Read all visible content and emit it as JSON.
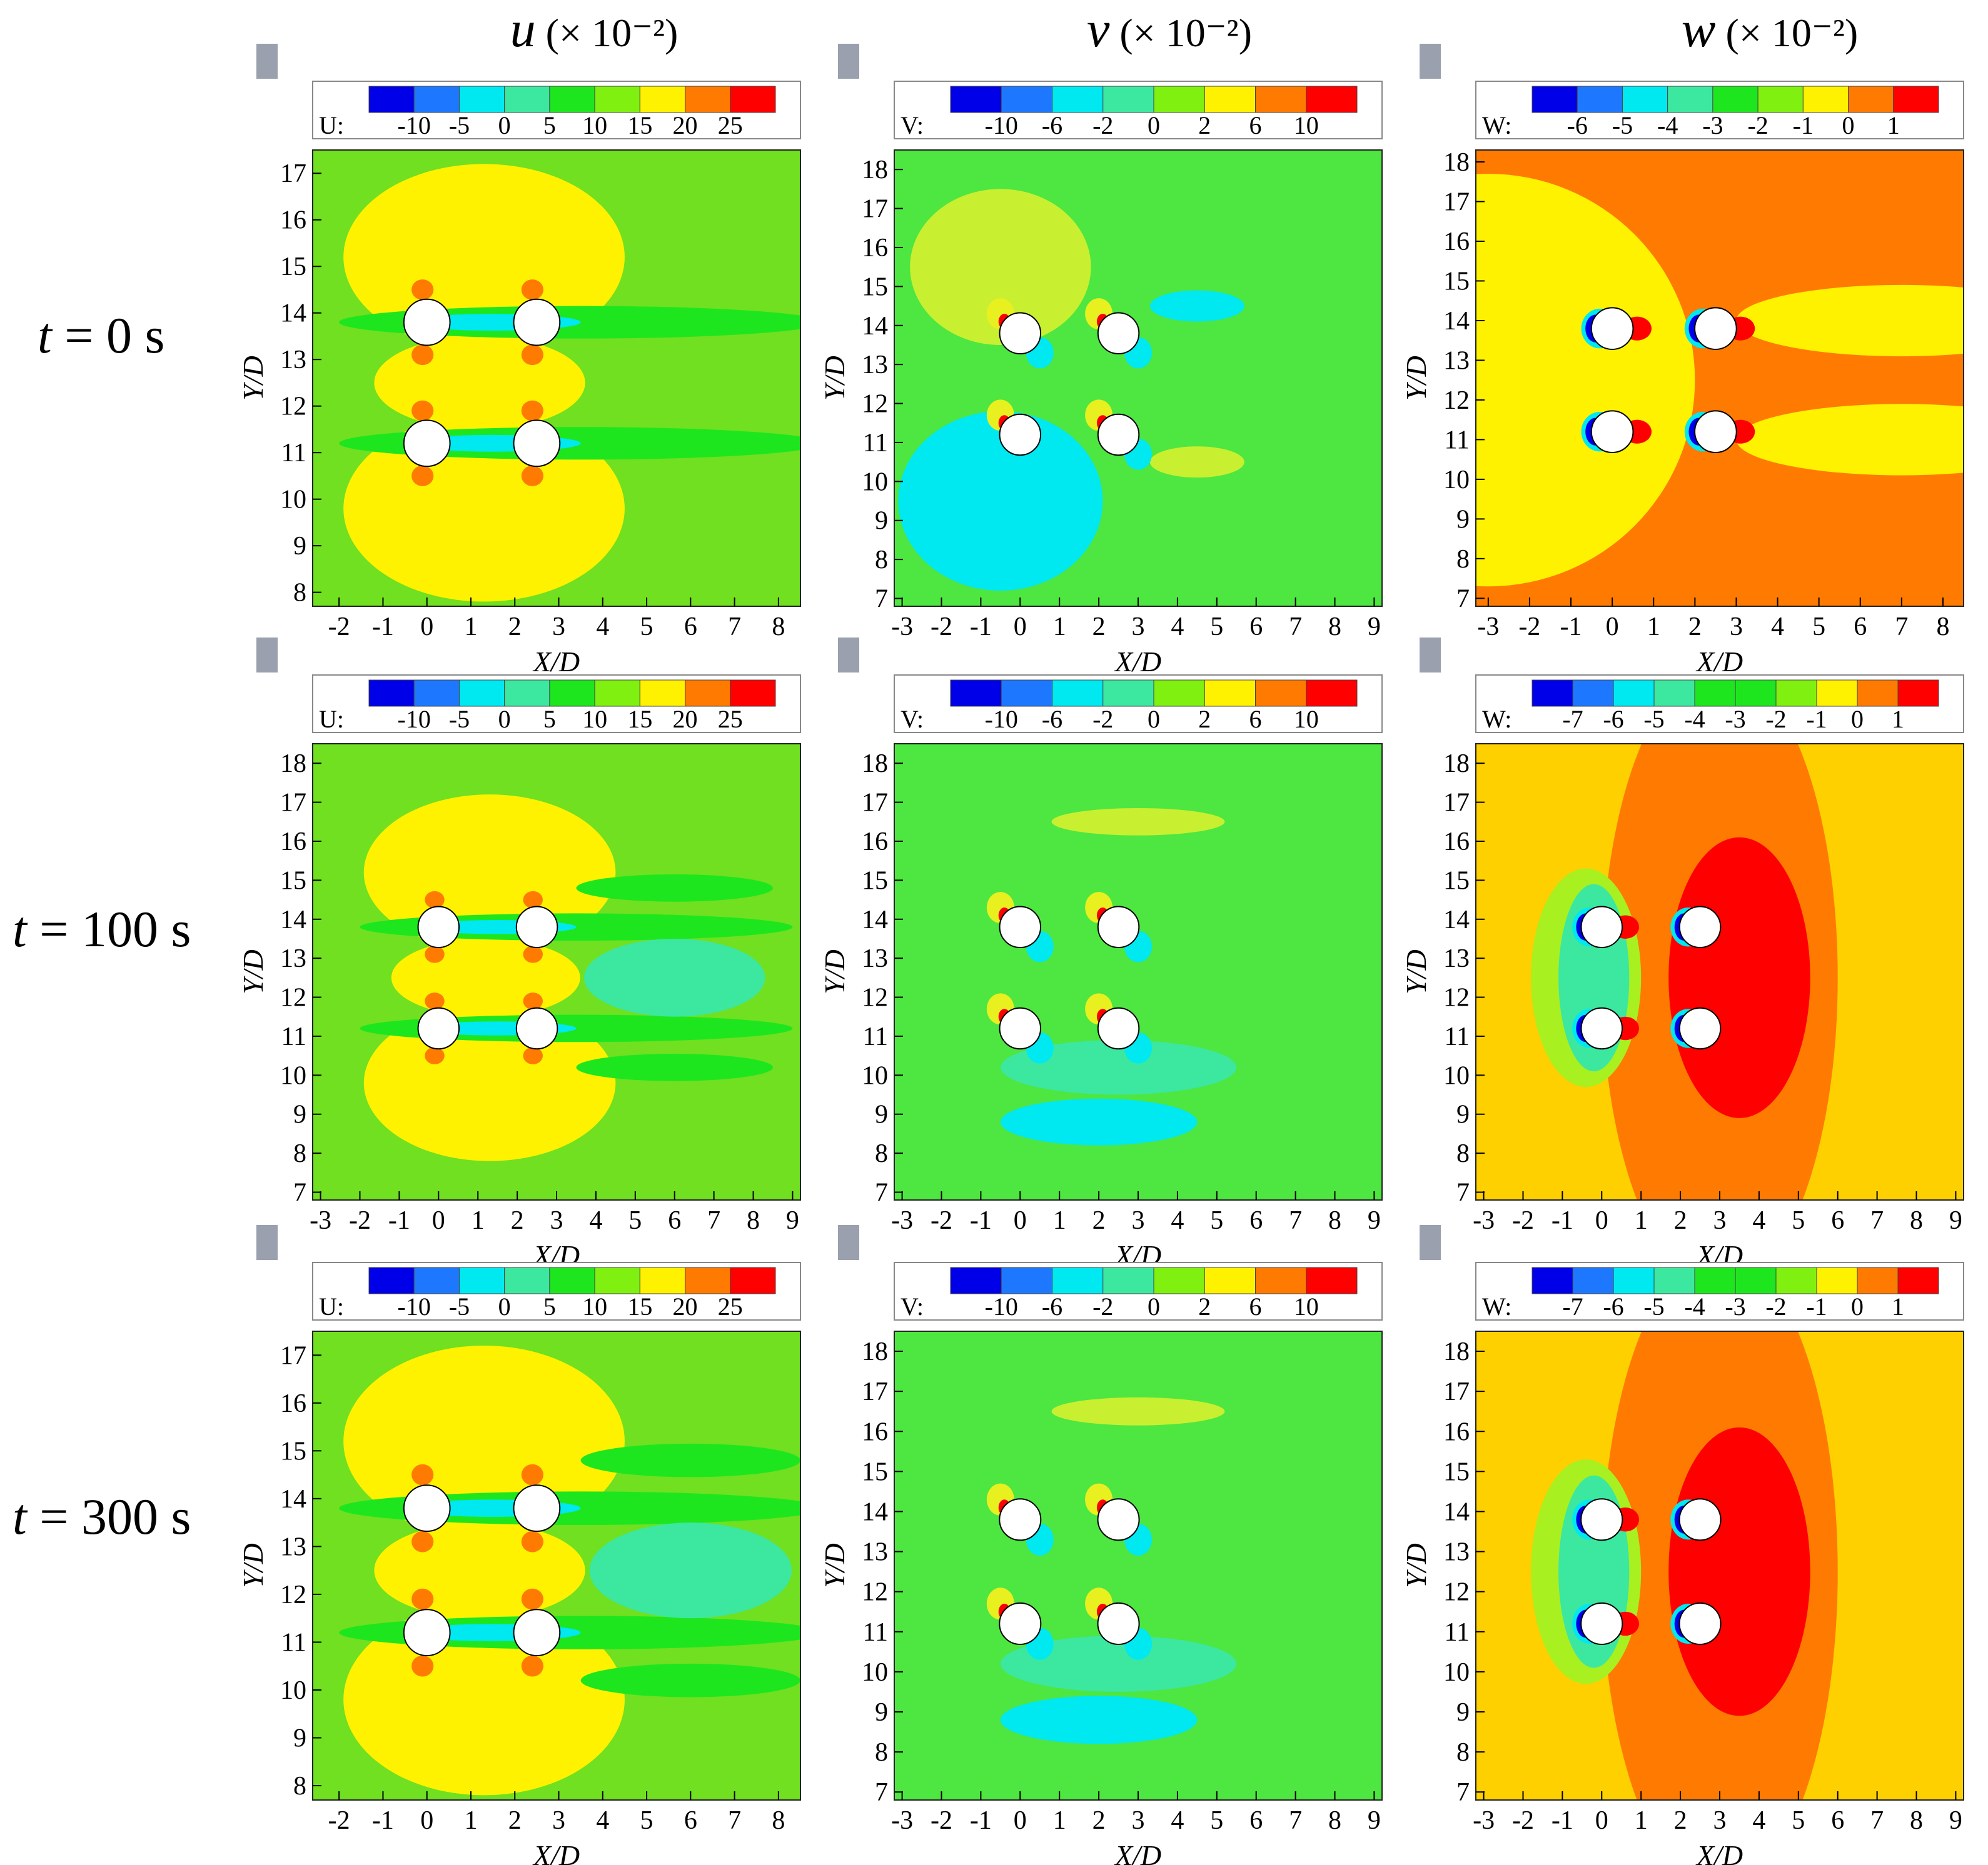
{
  "figure": {
    "column_headers": [
      {
        "symbol": "u",
        "scale": "(× 10⁻²)"
      },
      {
        "symbol": "v",
        "scale": "(× 10⁻²)"
      },
      {
        "symbol": "w",
        "scale": "(× 10⁻²)"
      }
    ],
    "row_headers": [
      {
        "symbol": "t",
        "rest": " = 0 s"
      },
      {
        "symbol": "t",
        "rest": " = 100 s"
      },
      {
        "symbol": "t",
        "rest": " = 300 s"
      }
    ]
  },
  "colors": {
    "ramp": [
      "#0000e8",
      "#1e78ff",
      "#00e8f0",
      "#3ce7a0",
      "#1ee61e",
      "#80f010",
      "#fff200",
      "#ff7a00",
      "#ff0000"
    ],
    "background_u": "#70e020",
    "background_v": "#4ee640"
  },
  "chart_data": [
    {
      "type": "heatmap",
      "panel": "u, t = 0 s",
      "variable": "U",
      "legend_prefix": "U:",
      "legend_ticks": [
        "-10",
        "-5",
        "0",
        "5",
        "10",
        "15",
        "20",
        "25"
      ],
      "xlabel": "X/D",
      "ylabel": "Y/D",
      "xticks": [
        "-2",
        "-1",
        "0",
        "1",
        "2",
        "3",
        "4",
        "5",
        "6",
        "7",
        "8"
      ],
      "yticks": [
        "8",
        "9",
        "10",
        "11",
        "12",
        "13",
        "14",
        "15",
        "16",
        "17"
      ],
      "xlim": [
        -2.6,
        8.5
      ],
      "ylim": [
        7.7,
        17.5
      ],
      "cylinders": [
        [
          0,
          13.8
        ],
        [
          2.5,
          13.8
        ],
        [
          0,
          11.2
        ],
        [
          2.5,
          11.2
        ]
      ]
    },
    {
      "type": "heatmap",
      "panel": "v, t = 0 s",
      "variable": "V",
      "legend_prefix": "V:",
      "legend_ticks": [
        "-10",
        "-6",
        "-2",
        "0",
        "2",
        "6",
        "10"
      ],
      "xlabel": "X/D",
      "ylabel": "Y/D",
      "xticks": [
        "-3",
        "-2",
        "-1",
        "0",
        "1",
        "2",
        "3",
        "4",
        "5",
        "6",
        "7",
        "8",
        "9"
      ],
      "yticks": [
        "7",
        "8",
        "9",
        "10",
        "11",
        "12",
        "13",
        "14",
        "15",
        "16",
        "17",
        "18"
      ],
      "xlim": [
        -3.2,
        9.2
      ],
      "ylim": [
        6.8,
        18.5
      ],
      "cylinders": [
        [
          0,
          13.8
        ],
        [
          2.5,
          13.8
        ],
        [
          0,
          11.2
        ],
        [
          2.5,
          11.2
        ]
      ]
    },
    {
      "type": "heatmap",
      "panel": "w, t = 0 s",
      "variable": "W",
      "legend_prefix": "W:",
      "legend_ticks": [
        "-6",
        "-5",
        "-4",
        "-3",
        "-2",
        "-1",
        "0",
        "1"
      ],
      "xlabel": "X/D",
      "ylabel": "Y/D",
      "xticks": [
        "-3",
        "-2",
        "-1",
        "0",
        "1",
        "2",
        "3",
        "4",
        "5",
        "6",
        "7",
        "8"
      ],
      "yticks": [
        "7",
        "8",
        "9",
        "10",
        "11",
        "12",
        "13",
        "14",
        "15",
        "16",
        "17",
        "18"
      ],
      "xlim": [
        -3.3,
        8.5
      ],
      "ylim": [
        6.8,
        18.3
      ],
      "cylinders": [
        [
          0,
          13.8
        ],
        [
          2.5,
          13.8
        ],
        [
          0,
          11.2
        ],
        [
          2.5,
          11.2
        ]
      ]
    },
    {
      "type": "heatmap",
      "panel": "u, t = 100 s",
      "variable": "U",
      "legend_prefix": "U:",
      "legend_ticks": [
        "-10",
        "-5",
        "0",
        "5",
        "10",
        "15",
        "20",
        "25"
      ],
      "xlabel": "X/D",
      "ylabel": "Y/D",
      "xticks": [
        "-3",
        "-2",
        "-1",
        "0",
        "1",
        "2",
        "3",
        "4",
        "5",
        "6",
        "7",
        "8",
        "9"
      ],
      "yticks": [
        "7",
        "8",
        "9",
        "10",
        "11",
        "12",
        "13",
        "14",
        "15",
        "16",
        "17",
        "18"
      ],
      "xlim": [
        -3.2,
        9.2
      ],
      "ylim": [
        6.8,
        18.5
      ],
      "cylinders": [
        [
          0,
          13.8
        ],
        [
          2.5,
          13.8
        ],
        [
          0,
          11.2
        ],
        [
          2.5,
          11.2
        ]
      ]
    },
    {
      "type": "heatmap",
      "panel": "v, t = 100 s",
      "variable": "V",
      "legend_prefix": "V:",
      "legend_ticks": [
        "-10",
        "-6",
        "-2",
        "0",
        "2",
        "6",
        "10"
      ],
      "xlabel": "X/D",
      "ylabel": "Y/D",
      "xticks": [
        "-3",
        "-2",
        "-1",
        "0",
        "1",
        "2",
        "3",
        "4",
        "5",
        "6",
        "7",
        "8",
        "9"
      ],
      "yticks": [
        "7",
        "8",
        "9",
        "10",
        "11",
        "12",
        "13",
        "14",
        "15",
        "16",
        "17",
        "18"
      ],
      "xlim": [
        -3.2,
        9.2
      ],
      "ylim": [
        6.8,
        18.5
      ],
      "cylinders": [
        [
          0,
          13.8
        ],
        [
          2.5,
          13.8
        ],
        [
          0,
          11.2
        ],
        [
          2.5,
          11.2
        ]
      ]
    },
    {
      "type": "heatmap",
      "panel": "w, t = 100 s",
      "variable": "W",
      "legend_prefix": "W:",
      "legend_ticks": [
        "-7",
        "-6",
        "-5",
        "-4",
        "-3",
        "-2",
        "-1",
        "0",
        "1"
      ],
      "xlabel": "X/D",
      "ylabel": "Y/D",
      "xticks": [
        "-3",
        "-2",
        "-1",
        "0",
        "1",
        "2",
        "3",
        "4",
        "5",
        "6",
        "7",
        "8",
        "9"
      ],
      "yticks": [
        "7",
        "8",
        "9",
        "10",
        "11",
        "12",
        "13",
        "14",
        "15",
        "16",
        "17",
        "18"
      ],
      "xlim": [
        -3.2,
        9.2
      ],
      "ylim": [
        6.8,
        18.5
      ],
      "cylinders": [
        [
          0,
          13.8
        ],
        [
          2.5,
          13.8
        ],
        [
          0,
          11.2
        ],
        [
          2.5,
          11.2
        ]
      ]
    },
    {
      "type": "heatmap",
      "panel": "u, t = 300 s",
      "variable": "U",
      "legend_prefix": "U:",
      "legend_ticks": [
        "-10",
        "-5",
        "0",
        "5",
        "10",
        "15",
        "20",
        "25"
      ],
      "xlabel": "X/D",
      "ylabel": "Y/D",
      "xticks": [
        "-2",
        "-1",
        "0",
        "1",
        "2",
        "3",
        "4",
        "5",
        "6",
        "7",
        "8"
      ],
      "yticks": [
        "8",
        "9",
        "10",
        "11",
        "12",
        "13",
        "14",
        "15",
        "16",
        "17"
      ],
      "xlim": [
        -2.6,
        8.5
      ],
      "ylim": [
        7.7,
        17.5
      ],
      "cylinders": [
        [
          0,
          13.8
        ],
        [
          2.5,
          13.8
        ],
        [
          0,
          11.2
        ],
        [
          2.5,
          11.2
        ]
      ]
    },
    {
      "type": "heatmap",
      "panel": "v, t = 300 s",
      "variable": "V",
      "legend_prefix": "V:",
      "legend_ticks": [
        "-10",
        "-6",
        "-2",
        "0",
        "2",
        "6",
        "10"
      ],
      "xlabel": "X/D",
      "ylabel": "Y/D",
      "xticks": [
        "-3",
        "-2",
        "-1",
        "0",
        "1",
        "2",
        "3",
        "4",
        "5",
        "6",
        "7",
        "8",
        "9"
      ],
      "yticks": [
        "7",
        "8",
        "9",
        "10",
        "11",
        "12",
        "13",
        "14",
        "15",
        "16",
        "17",
        "18"
      ],
      "xlim": [
        -3.2,
        9.2
      ],
      "ylim": [
        6.8,
        18.5
      ],
      "cylinders": [
        [
          0,
          13.8
        ],
        [
          2.5,
          13.8
        ],
        [
          0,
          11.2
        ],
        [
          2.5,
          11.2
        ]
      ]
    },
    {
      "type": "heatmap",
      "panel": "w, t = 300 s",
      "variable": "W",
      "legend_prefix": "W:",
      "legend_ticks": [
        "-7",
        "-6",
        "-5",
        "-4",
        "-3",
        "-2",
        "-1",
        "0",
        "1"
      ],
      "xlabel": "X/D",
      "ylabel": "Y/D",
      "xticks": [
        "-3",
        "-2",
        "-1",
        "0",
        "1",
        "2",
        "3",
        "4",
        "5",
        "6",
        "7",
        "8",
        "9"
      ],
      "yticks": [
        "7",
        "8",
        "9",
        "10",
        "11",
        "12",
        "13",
        "14",
        "15",
        "16",
        "17",
        "18"
      ],
      "xlim": [
        -3.2,
        9.2
      ],
      "ylim": [
        6.8,
        18.5
      ],
      "cylinders": [
        [
          0,
          13.8
        ],
        [
          2.5,
          13.8
        ],
        [
          0,
          11.2
        ],
        [
          2.5,
          11.2
        ]
      ]
    }
  ]
}
